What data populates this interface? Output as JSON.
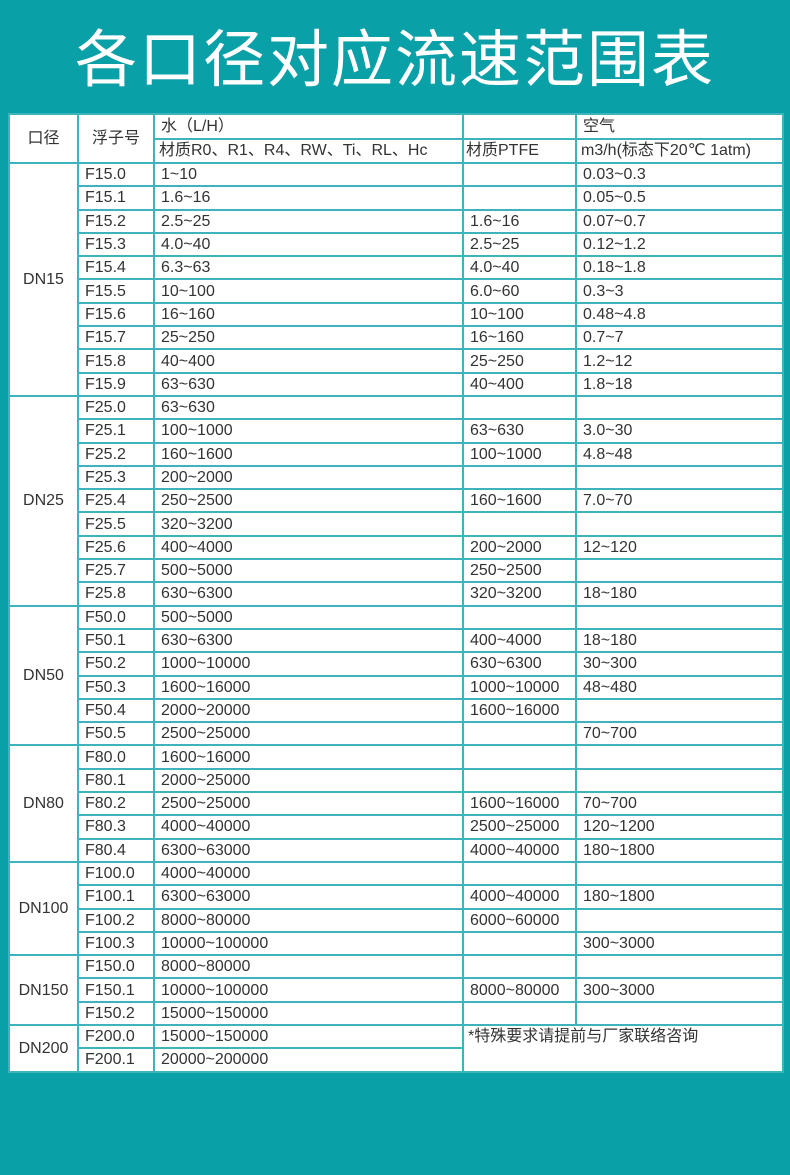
{
  "title": "各口径对应流速范围表",
  "header": {
    "diameter": "口径",
    "float_no": "浮子号",
    "water": "水（L/H）",
    "water_material": "材质R0、R1、R4、RW、Ti、RL、Hc",
    "ptfe": "材质PTFE",
    "air": "空气",
    "air_unit": "m3/h(标态下20℃ 1atm)"
  },
  "note": "*特殊要求请提前与厂家联络咨询",
  "groups": [
    {
      "dn": "DN15",
      "rows": [
        [
          "F15.0",
          "1~10",
          "",
          "0.03~0.3"
        ],
        [
          "F15.1",
          "1.6~16",
          "",
          "0.05~0.5"
        ],
        [
          "F15.2",
          "2.5~25",
          "1.6~16",
          "0.07~0.7"
        ],
        [
          "F15.3",
          "4.0~40",
          "2.5~25",
          "0.12~1.2"
        ],
        [
          "F15.4",
          "6.3~63",
          "4.0~40",
          "0.18~1.8"
        ],
        [
          "F15.5",
          "10~100",
          "6.0~60",
          "0.3~3"
        ],
        [
          "F15.6",
          "16~160",
          "10~100",
          "0.48~4.8"
        ],
        [
          "F15.7",
          "25~250",
          "16~160",
          "0.7~7"
        ],
        [
          "F15.8",
          "40~400",
          "25~250",
          "1.2~12"
        ],
        [
          "F15.9",
          "63~630",
          "40~400",
          "1.8~18"
        ]
      ]
    },
    {
      "dn": "DN25",
      "rows": [
        [
          "F25.0",
          "63~630",
          "",
          ""
        ],
        [
          "F25.1",
          "100~1000",
          "63~630",
          "3.0~30"
        ],
        [
          "F25.2",
          "160~1600",
          "100~1000",
          "4.8~48"
        ],
        [
          "F25.3",
          "200~2000",
          "",
          ""
        ],
        [
          "F25.4",
          "250~2500",
          "160~1600",
          "7.0~70"
        ],
        [
          "F25.5",
          "320~3200",
          "",
          ""
        ],
        [
          "F25.6",
          "400~4000",
          "200~2000",
          "12~120"
        ],
        [
          "F25.7",
          "500~5000",
          "250~2500",
          ""
        ],
        [
          "F25.8",
          "630~6300",
          "320~3200",
          "18~180"
        ]
      ]
    },
    {
      "dn": "DN50",
      "rows": [
        [
          "F50.0",
          "500~5000",
          "",
          ""
        ],
        [
          "F50.1",
          "630~6300",
          "400~4000",
          "18~180"
        ],
        [
          "F50.2",
          "1000~10000",
          "630~6300",
          "30~300"
        ],
        [
          "F50.3",
          "1600~16000",
          "1000~10000",
          "48~480"
        ],
        [
          "F50.4",
          "2000~20000",
          "1600~16000",
          ""
        ],
        [
          "F50.5",
          "2500~25000",
          "",
          "70~700"
        ]
      ]
    },
    {
      "dn": "DN80",
      "rows": [
        [
          "F80.0",
          "1600~16000",
          "",
          ""
        ],
        [
          "F80.1",
          "2000~25000",
          "",
          ""
        ],
        [
          "F80.2",
          "2500~25000",
          "1600~16000",
          "70~700"
        ],
        [
          "F80.3",
          "4000~40000",
          "2500~25000",
          "120~1200"
        ],
        [
          "F80.4",
          "6300~63000",
          "4000~40000",
          "180~1800"
        ]
      ]
    },
    {
      "dn": "DN100",
      "rows": [
        [
          "F100.0",
          "4000~40000",
          "",
          ""
        ],
        [
          "F100.1",
          "6300~63000",
          "4000~40000",
          "180~1800"
        ],
        [
          "F100.2",
          "8000~80000",
          "6000~60000",
          ""
        ],
        [
          "F100.3",
          "10000~100000",
          "",
          "300~3000"
        ]
      ]
    },
    {
      "dn": "DN150",
      "rows": [
        [
          "F150.0",
          "8000~80000",
          "",
          ""
        ],
        [
          "F150.1",
          "10000~100000",
          "8000~80000",
          "300~3000"
        ],
        [
          "F150.2",
          "15000~150000",
          "",
          ""
        ]
      ]
    },
    {
      "dn": "DN200",
      "rows": [
        [
          "F200.0",
          "15000~150000"
        ],
        [
          "F200.1",
          "20000~200000"
        ]
      ]
    }
  ]
}
